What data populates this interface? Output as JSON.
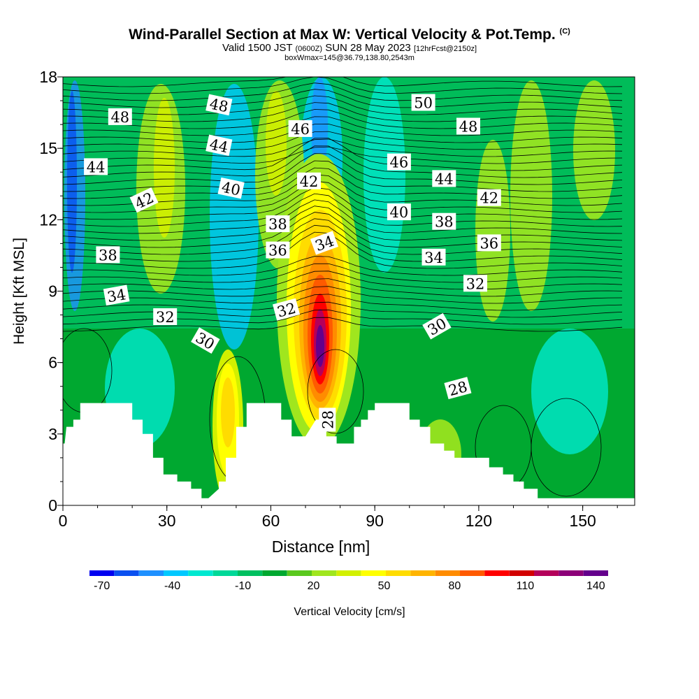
{
  "title": {
    "main": "Wind-Parallel Section at Max W: Vertical Velocity & Pot.Temp.",
    "mark": "(C)",
    "valid_a": "Valid 1500 JST",
    "valid_b": "(0600Z)",
    "valid_c": "SUN 28 May 2023",
    "valid_d": "[12hrFcst@2150z]",
    "sub": "boxWmax=145@36.79,138.80,2543m"
  },
  "colors": {
    "palette": [
      "#0000f0",
      "#0a50f0",
      "#1e90ff",
      "#00c8ff",
      "#00e8d0",
      "#00d898",
      "#00c060",
      "#00a830",
      "#5ac81e",
      "#a0e61e",
      "#d2f000",
      "#ffff00",
      "#ffdc00",
      "#ffb400",
      "#ff8c00",
      "#ff5a00",
      "#ff0000",
      "#d20000",
      "#b4005a",
      "#8c0078",
      "#64008c"
    ],
    "terrain": "#ffffff",
    "contour": "#000000"
  },
  "chart_data": {
    "type": "heatmap",
    "xlabel": "Distance [nm]",
    "ylabel": "Height [Kft MSL]",
    "xlim": [
      0,
      165
    ],
    "ylim": [
      0,
      18
    ],
    "x_ticks": [
      "0",
      "30",
      "60",
      "90",
      "120",
      "150"
    ],
    "y_ticks": [
      "0",
      "3",
      "6",
      "9",
      "12",
      "15",
      "18"
    ],
    "colorbar": {
      "label": "Vertical Velocity [cm/s]",
      "range": [
        -70,
        140
      ],
      "tick_labels": [
        "-70",
        "-40",
        "-10",
        "20",
        "50",
        "80",
        "110",
        "140"
      ]
    },
    "contour_field": "Potential temperature",
    "contour_labels": [
      {
        "text": "48",
        "x": 16.5,
        "y": 16.3,
        "rot": 0
      },
      {
        "text": "48",
        "x": 45,
        "y": 16.8,
        "rot": 12
      },
      {
        "text": "50",
        "x": 104,
        "y": 16.9,
        "rot": 0
      },
      {
        "text": "46",
        "x": 68.5,
        "y": 15.8,
        "rot": 0
      },
      {
        "text": "48",
        "x": 117,
        "y": 15.9,
        "rot": 0
      },
      {
        "text": "44",
        "x": 9.5,
        "y": 14.2,
        "rot": 0
      },
      {
        "text": "44",
        "x": 45,
        "y": 15.1,
        "rot": 12
      },
      {
        "text": "46",
        "x": 97,
        "y": 14.4,
        "rot": 0
      },
      {
        "text": "42",
        "x": 71,
        "y": 13.6,
        "rot": 0
      },
      {
        "text": "44",
        "x": 110,
        "y": 13.7,
        "rot": 0
      },
      {
        "text": "42",
        "x": 23.5,
        "y": 12.8,
        "rot": -25
      },
      {
        "text": "40",
        "x": 48.5,
        "y": 13.3,
        "rot": 12
      },
      {
        "text": "42",
        "x": 123,
        "y": 12.9,
        "rot": 0
      },
      {
        "text": "40",
        "x": 97,
        "y": 12.3,
        "rot": 0
      },
      {
        "text": "38",
        "x": 62,
        "y": 11.8,
        "rot": 0
      },
      {
        "text": "38",
        "x": 110,
        "y": 11.9,
        "rot": 0
      },
      {
        "text": "36",
        "x": 123,
        "y": 11.0,
        "rot": 0
      },
      {
        "text": "38",
        "x": 13,
        "y": 10.5,
        "rot": 0
      },
      {
        "text": "36",
        "x": 62,
        "y": 10.7,
        "rot": 0
      },
      {
        "text": "34",
        "x": 75.5,
        "y": 11.0,
        "rot": -20
      },
      {
        "text": "34",
        "x": 107,
        "y": 10.4,
        "rot": 0
      },
      {
        "text": "32",
        "x": 119,
        "y": 9.3,
        "rot": 0
      },
      {
        "text": "34",
        "x": 15.5,
        "y": 8.8,
        "rot": -10
      },
      {
        "text": "32",
        "x": 29.5,
        "y": 7.9,
        "rot": 0
      },
      {
        "text": "32",
        "x": 64.5,
        "y": 8.2,
        "rot": -15
      },
      {
        "text": "30",
        "x": 41,
        "y": 6.9,
        "rot": 30
      },
      {
        "text": "30",
        "x": 108,
        "y": 7.5,
        "rot": -30
      },
      {
        "text": "28",
        "x": 114,
        "y": 4.9,
        "rot": -15
      },
      {
        "text": "28",
        "x": 76.5,
        "y": 3.6,
        "rot": -90
      }
    ]
  }
}
